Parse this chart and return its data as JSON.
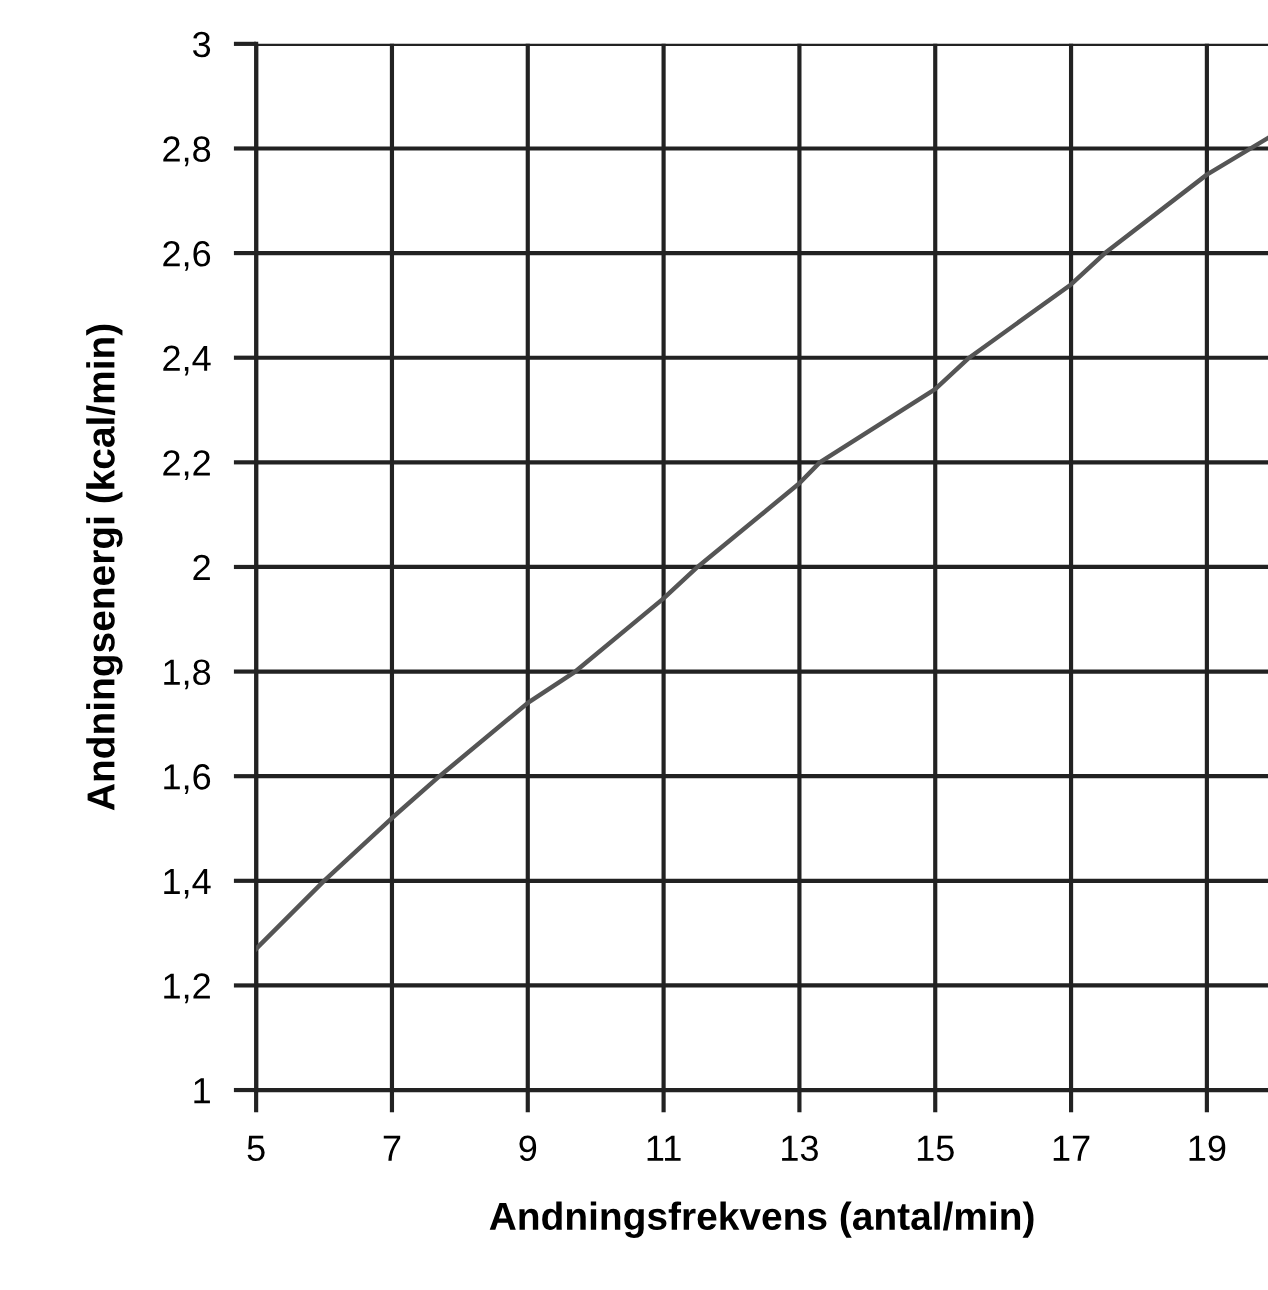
{
  "chart_data": {
    "type": "line",
    "xlabel": "Andningsfrekvens (antal/min)",
    "ylabel": "Andningsenergi (kcal/min)",
    "x": [
      5,
      6,
      7,
      7.7,
      9,
      9.7,
      11,
      11.5,
      13,
      13.3,
      15,
      15.5,
      17,
      17.5,
      19,
      19.9
    ],
    "series": [
      {
        "color": "#555555",
        "values": [
          1.27,
          1.4,
          1.52,
          1.6,
          1.74,
          1.8,
          1.94,
          2.0,
          2.16,
          2.2,
          2.34,
          2.4,
          2.54,
          2.6,
          2.75,
          2.82
        ]
      }
    ],
    "xlim": [
      5,
      19.9
    ],
    "ylim": [
      1,
      3
    ],
    "xticks": [
      5,
      7,
      9,
      11,
      13,
      15,
      17,
      19
    ],
    "yticks": [
      {
        "value": 1,
        "label": "1"
      },
      {
        "value": 1.2,
        "label": "1,2"
      },
      {
        "value": 1.4,
        "label": "1,4"
      },
      {
        "value": 1.6,
        "label": "1,6"
      },
      {
        "value": 1.8,
        "label": "1,8"
      },
      {
        "value": 2,
        "label": "2"
      },
      {
        "value": 2.2,
        "label": "2,2"
      },
      {
        "value": 2.4,
        "label": "2,4"
      },
      {
        "value": 2.6,
        "label": "2,6"
      },
      {
        "value": 2.8,
        "label": "2,8"
      },
      {
        "value": 3,
        "label": "3"
      }
    ],
    "grid": true,
    "marker": "none",
    "line_style": "solid"
  }
}
